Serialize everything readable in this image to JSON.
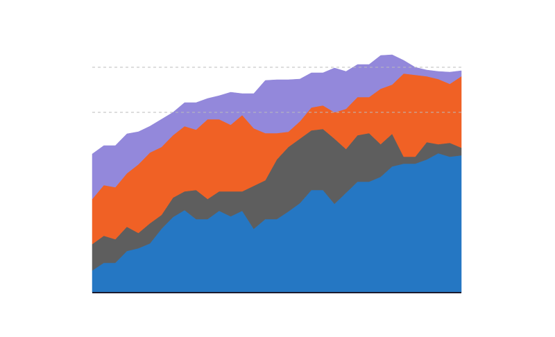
{
  "chart_data": {
    "type": "stacked_area",
    "x": [
      0,
      1,
      2,
      3,
      4,
      5,
      6,
      7,
      8,
      9,
      10,
      11,
      12,
      13,
      14,
      15,
      16,
      17,
      18,
      19,
      20,
      21,
      22,
      23,
      24,
      25,
      26,
      27,
      28,
      29,
      30,
      31,
      32
    ],
    "xlim": [
      0,
      32
    ],
    "ylim": [
      0,
      360
    ],
    "yticks": [
      260,
      325
    ],
    "grid": true,
    "series": [
      {
        "color": "#2577c3",
        "values": [
          32,
          43,
          43,
          60,
          64,
          71,
          92,
          109,
          119,
          106,
          106,
          118,
          110,
          118,
          92,
          106,
          106,
          117,
          129,
          148,
          148,
          128,
          144,
          160,
          160,
          167,
          182,
          186,
          186,
          192,
          201,
          196,
          198
        ]
      },
      {
        "color": "#5e5e5e",
        "values": [
          38,
          39,
          34,
          35,
          22,
          29,
          20,
          28,
          27,
          42,
          29,
          28,
          36,
          28,
          62,
          56,
          86,
          93,
          93,
          86,
          88,
          94,
          63,
          67,
          70,
          47,
          47,
          10,
          10,
          25,
          13,
          20,
          11
        ]
      },
      {
        "color": "#f06125",
        "values": [
          65,
          73,
          75,
          77,
          99,
          102,
          98,
          90,
          94,
          87,
          115,
          104,
          96,
          110,
          83,
          68,
          38,
          22,
          25,
          33,
          34,
          38,
          58,
          55,
          52,
          80,
          71,
          120,
          118,
          95,
          94,
          85,
          103
        ]
      },
      {
        "color": "#9388db",
        "values": [
          65,
          57,
          60,
          57,
          47,
          38,
          40,
          33,
          34,
          39,
          30,
          34,
          47,
          31,
          50,
          76,
          77,
          75,
          61,
          50,
          47,
          64,
          54,
          47,
          47,
          48,
          43,
          19,
          11,
          9,
          11,
          17,
          8
        ]
      }
    ]
  }
}
